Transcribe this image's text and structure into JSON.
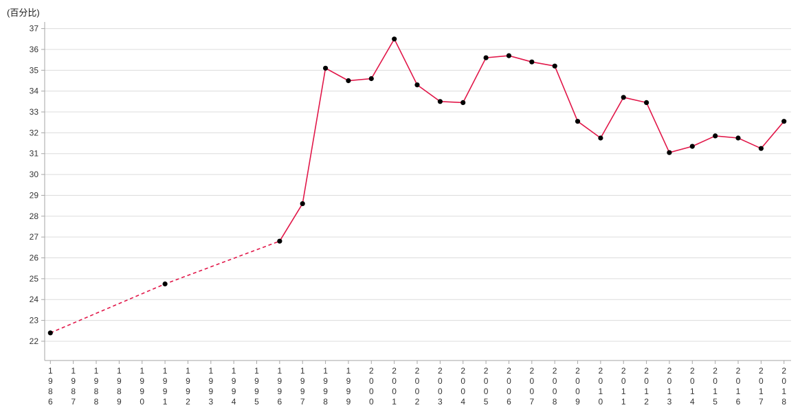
{
  "chart_data": {
    "type": "line",
    "title": "",
    "ylabel": "(百分比)",
    "xlabel": "",
    "series": [
      {
        "name": "百分比",
        "points": [
          {
            "x": 1986,
            "y": 22.4
          },
          {
            "x": 1991,
            "y": 24.75
          },
          {
            "x": 1996,
            "y": 26.8
          },
          {
            "x": 1997,
            "y": 28.6
          },
          {
            "x": 1998,
            "y": 35.1
          },
          {
            "x": 1999,
            "y": 34.5
          },
          {
            "x": 2000,
            "y": 34.6
          },
          {
            "x": 2001,
            "y": 36.5
          },
          {
            "x": 2002,
            "y": 34.3
          },
          {
            "x": 2003,
            "y": 33.5
          },
          {
            "x": 2004,
            "y": 33.45
          },
          {
            "x": 2005,
            "y": 35.6
          },
          {
            "x": 2006,
            "y": 35.7
          },
          {
            "x": 2007,
            "y": 35.4
          },
          {
            "x": 2008,
            "y": 35.2
          },
          {
            "x": 2009,
            "y": 32.55
          },
          {
            "x": 2010,
            "y": 31.75
          },
          {
            "x": 2011,
            "y": 33.7
          },
          {
            "x": 2012,
            "y": 33.45
          },
          {
            "x": 2013,
            "y": 31.05
          },
          {
            "x": 2014,
            "y": 31.35
          },
          {
            "x": 2015,
            "y": 31.85
          },
          {
            "x": 2016,
            "y": 31.75
          },
          {
            "x": 2017,
            "y": 31.25
          },
          {
            "x": 2018,
            "y": 32.55
          }
        ],
        "dashed_through_x": 1996
      }
    ],
    "x_ticks": [
      "1986",
      "1987",
      "1988",
      "1989",
      "1990",
      "1991",
      "1992",
      "1993",
      "1994",
      "1995",
      "1996",
      "1997",
      "1998",
      "1999",
      "2000",
      "2001",
      "2002",
      "2003",
      "2004",
      "2005",
      "2006",
      "2007",
      "2008",
      "2009",
      "2010",
      "2011",
      "2012",
      "2013",
      "2014",
      "2015",
      "2016",
      "2017",
      "2018"
    ],
    "x_range": [
      1986,
      2018
    ],
    "y_ticks": [
      22,
      23,
      24,
      25,
      26,
      27,
      28,
      29,
      30,
      31,
      32,
      33,
      34,
      35,
      36,
      37
    ],
    "ylim": [
      21.1,
      37.3
    ],
    "grid": true,
    "legend_position": "none",
    "line_color": "#e11648",
    "point_color": "#000000",
    "grid_color": "#dcdcdc",
    "axis_color": "#a6a6a6",
    "tick_label_color": "#333333"
  }
}
